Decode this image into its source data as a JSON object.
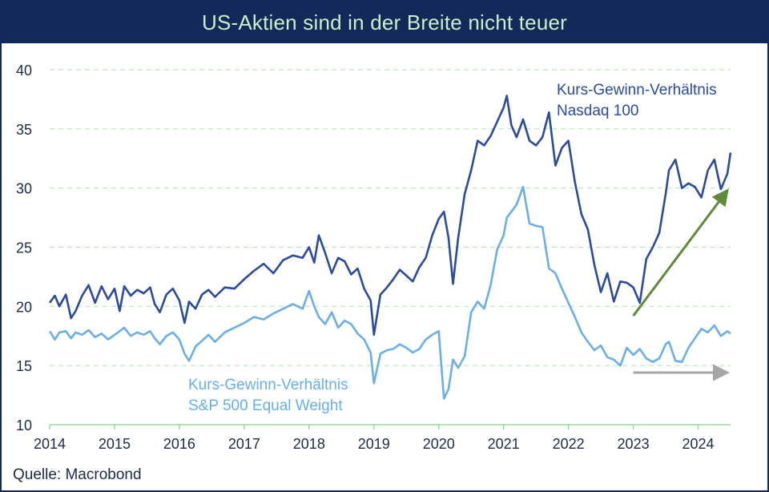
{
  "title": "US-Aktien sind in der Breite nicht teuer",
  "source": "Quelle: Macrobond",
  "colors": {
    "header_bg": "#13295a",
    "header_text": "#c9f0c9",
    "nasdaq": "#2b4ba0",
    "sp500ew": "#6aaeea",
    "grid": "#b9e6b9",
    "arrow_up": "#5e8a3a",
    "arrow_flat": "#a6a6a6"
  },
  "chart_data": {
    "type": "line",
    "title": "US-Aktien sind in der Breite nicht teuer",
    "xlabel": "",
    "ylabel": "",
    "xlim": [
      2014.0,
      2024.5
    ],
    "ylim": [
      10,
      40
    ],
    "x_ticks": [
      "2014",
      "2015",
      "2016",
      "2017",
      "2018",
      "2019",
      "2020",
      "2021",
      "2022",
      "2023",
      "2024"
    ],
    "y_ticks": [
      "10",
      "15",
      "20",
      "25",
      "30",
      "35",
      "40"
    ],
    "grid": "horizontal dashed",
    "legend": "inline labels",
    "series": [
      {
        "name": "Kurs-Gewinn-Verhältnis Nasdaq 100",
        "label_lines": [
          "Kurs-Gewinn-Verhältnis",
          "Nasdaq 100"
        ],
        "x": [
          2014.0,
          2014.08,
          2014.15,
          2014.25,
          2014.33,
          2014.4,
          2014.5,
          2014.6,
          2014.7,
          2014.8,
          2014.9,
          2015.0,
          2015.08,
          2015.15,
          2015.25,
          2015.35,
          2015.45,
          2015.55,
          2015.62,
          2015.7,
          2015.8,
          2015.9,
          2016.0,
          2016.08,
          2016.15,
          2016.25,
          2016.35,
          2016.45,
          2016.55,
          2016.7,
          2016.85,
          2017.0,
          2017.15,
          2017.3,
          2017.45,
          2017.6,
          2017.75,
          2017.9,
          2018.0,
          2018.08,
          2018.15,
          2018.25,
          2018.35,
          2018.45,
          2018.55,
          2018.65,
          2018.75,
          2018.85,
          2018.95,
          2019.0,
          2019.1,
          2019.2,
          2019.3,
          2019.4,
          2019.5,
          2019.6,
          2019.7,
          2019.8,
          2019.9,
          2020.0,
          2020.08,
          2020.15,
          2020.22,
          2020.3,
          2020.4,
          2020.5,
          2020.6,
          2020.7,
          2020.8,
          2020.9,
          2021.0,
          2021.05,
          2021.12,
          2021.2,
          2021.3,
          2021.4,
          2021.5,
          2021.6,
          2021.7,
          2021.8,
          2021.9,
          2022.0,
          2022.1,
          2022.2,
          2022.3,
          2022.4,
          2022.5,
          2022.6,
          2022.7,
          2022.8,
          2022.9,
          2023.0,
          2023.1,
          2023.2,
          2023.3,
          2023.4,
          2023.5,
          2023.55,
          2023.65,
          2023.75,
          2023.85,
          2023.95,
          2024.05,
          2024.15,
          2024.25,
          2024.35,
          2024.45,
          2024.5
        ],
        "values": [
          20.3,
          20.9,
          20.0,
          21.0,
          19.0,
          19.6,
          20.9,
          21.8,
          20.3,
          21.7,
          20.6,
          21.5,
          19.6,
          21.7,
          20.9,
          21.4,
          21.1,
          21.6,
          20.2,
          19.5,
          21.0,
          21.5,
          20.5,
          18.6,
          20.4,
          19.8,
          21.0,
          21.4,
          20.8,
          21.6,
          21.5,
          22.3,
          23.0,
          23.6,
          22.8,
          23.9,
          24.3,
          24.1,
          25.0,
          23.7,
          26.0,
          24.5,
          22.8,
          24.1,
          23.8,
          22.7,
          23.2,
          21.5,
          20.5,
          17.6,
          21.0,
          21.6,
          22.3,
          23.1,
          22.6,
          22.1,
          23.3,
          24.1,
          26.0,
          27.4,
          28.0,
          25.8,
          21.9,
          25.8,
          29.5,
          31.5,
          34.0,
          33.6,
          34.4,
          35.6,
          36.8,
          37.8,
          35.3,
          34.3,
          35.8,
          34.0,
          33.6,
          34.3,
          36.4,
          31.9,
          33.4,
          34.0,
          30.5,
          27.8,
          26.5,
          23.5,
          21.2,
          22.8,
          20.4,
          22.1,
          22.0,
          21.6,
          20.3,
          24.0,
          25.0,
          26.2,
          29.5,
          31.5,
          32.4,
          30.0,
          30.4,
          30.1,
          29.2,
          31.5,
          32.4,
          29.9,
          31.2,
          33.0
        ]
      },
      {
        "name": "Kurs-Gewinn-Verhältnis S&P 500 Equal Weight",
        "label_lines": [
          "Kurs-Gewinn-Verhältnis",
          "S&P 500 Equal Weight"
        ],
        "x": [
          2014.0,
          2014.08,
          2014.15,
          2014.25,
          2014.33,
          2014.4,
          2014.5,
          2014.6,
          2014.7,
          2014.8,
          2014.9,
          2015.0,
          2015.08,
          2015.15,
          2015.25,
          2015.35,
          2015.45,
          2015.55,
          2015.62,
          2015.7,
          2015.8,
          2015.9,
          2016.0,
          2016.08,
          2016.15,
          2016.25,
          2016.35,
          2016.45,
          2016.55,
          2016.7,
          2016.85,
          2017.0,
          2017.15,
          2017.3,
          2017.45,
          2017.6,
          2017.75,
          2017.9,
          2018.0,
          2018.08,
          2018.15,
          2018.25,
          2018.35,
          2018.45,
          2018.55,
          2018.65,
          2018.75,
          2018.85,
          2018.95,
          2019.0,
          2019.1,
          2019.2,
          2019.3,
          2019.4,
          2019.5,
          2019.6,
          2019.7,
          2019.8,
          2019.9,
          2020.0,
          2020.08,
          2020.15,
          2020.22,
          2020.3,
          2020.4,
          2020.5,
          2020.6,
          2020.7,
          2020.8,
          2020.9,
          2021.0,
          2021.05,
          2021.12,
          2021.2,
          2021.3,
          2021.4,
          2021.5,
          2021.6,
          2021.7,
          2021.8,
          2021.9,
          2022.0,
          2022.1,
          2022.2,
          2022.3,
          2022.4,
          2022.5,
          2022.6,
          2022.7,
          2022.8,
          2022.9,
          2023.0,
          2023.1,
          2023.2,
          2023.3,
          2023.4,
          2023.5,
          2023.55,
          2023.65,
          2023.75,
          2023.85,
          2023.95,
          2024.05,
          2024.15,
          2024.25,
          2024.35,
          2024.45,
          2024.5
        ],
        "values": [
          17.9,
          17.2,
          17.8,
          17.9,
          17.3,
          17.8,
          17.6,
          18.0,
          17.4,
          17.7,
          17.2,
          17.6,
          17.9,
          18.2,
          17.5,
          17.8,
          17.6,
          17.9,
          17.3,
          16.8,
          17.5,
          17.8,
          17.2,
          16.0,
          15.4,
          16.6,
          17.1,
          17.6,
          17.0,
          17.8,
          18.2,
          18.6,
          19.1,
          18.9,
          19.4,
          19.8,
          20.2,
          19.8,
          21.3,
          20.0,
          19.1,
          18.5,
          19.5,
          18.2,
          18.8,
          18.5,
          17.7,
          17.2,
          16.1,
          13.5,
          16.0,
          16.3,
          16.4,
          16.8,
          16.5,
          16.1,
          16.4,
          17.2,
          17.6,
          17.9,
          12.2,
          13.0,
          15.5,
          14.8,
          15.8,
          19.5,
          20.4,
          19.8,
          21.8,
          24.8,
          26.0,
          27.5,
          28.0,
          28.6,
          30.1,
          27.0,
          26.8,
          26.7,
          23.2,
          22.8,
          21.5,
          20.3,
          19.1,
          17.8,
          17.0,
          16.3,
          16.7,
          15.7,
          15.5,
          15.0,
          16.5,
          15.9,
          16.4,
          15.6,
          15.3,
          15.6,
          16.8,
          17.0,
          15.4,
          15.3,
          16.5,
          17.3,
          18.1,
          17.8,
          18.4,
          17.5,
          17.9,
          17.7
        ]
      }
    ],
    "annotations": [
      {
        "type": "arrow",
        "from": [
          2023.0,
          19.2
        ],
        "to": [
          2024.5,
          29.8
        ],
        "color": "#5e8a3a"
      },
      {
        "type": "arrow",
        "from": [
          2023.0,
          14.4
        ],
        "to": [
          2024.5,
          14.4
        ],
        "color": "#a6a6a6"
      }
    ]
  }
}
